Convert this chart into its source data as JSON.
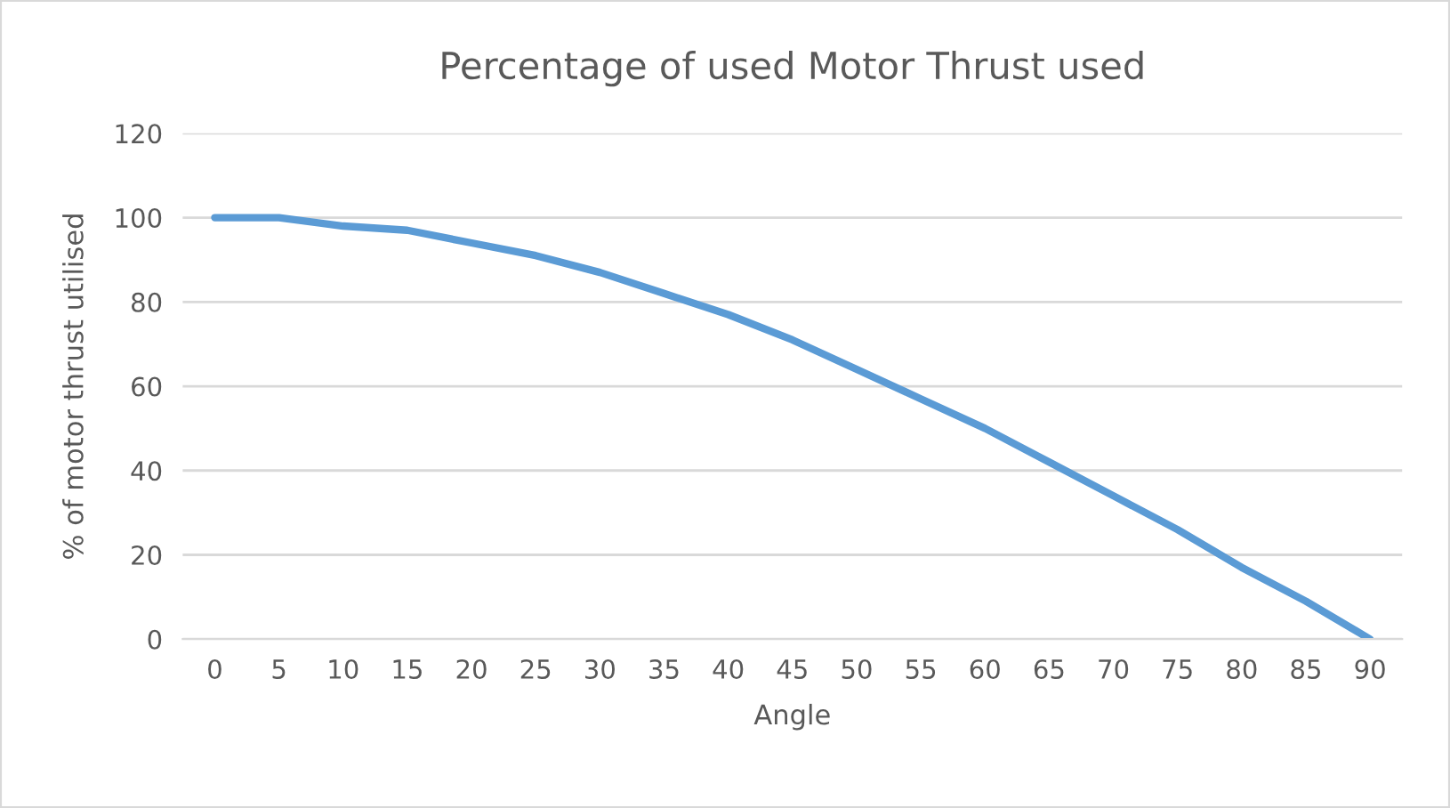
{
  "chart_data": {
    "type": "line",
    "title": "Percentage of used Motor Thrust used",
    "xlabel": "Angle",
    "ylabel": "% of motor thrust utilised",
    "categories": [
      "0",
      "5",
      "10",
      "15",
      "20",
      "25",
      "30",
      "35",
      "40",
      "45",
      "50",
      "55",
      "60",
      "65",
      "70",
      "75",
      "80",
      "85",
      "90"
    ],
    "series": [
      {
        "color": "#5b9bd5",
        "values": [
          100,
          100,
          98,
          97,
          94,
          91,
          87,
          82,
          77,
          71,
          64,
          57,
          50,
          42,
          34,
          26,
          17,
          9,
          0
        ]
      }
    ],
    "ylim": [
      0,
      120
    ],
    "yticks": [
      0,
      20,
      40,
      60,
      80,
      100,
      120
    ],
    "grid": "y",
    "marker": "none",
    "line_style": "solid"
  }
}
